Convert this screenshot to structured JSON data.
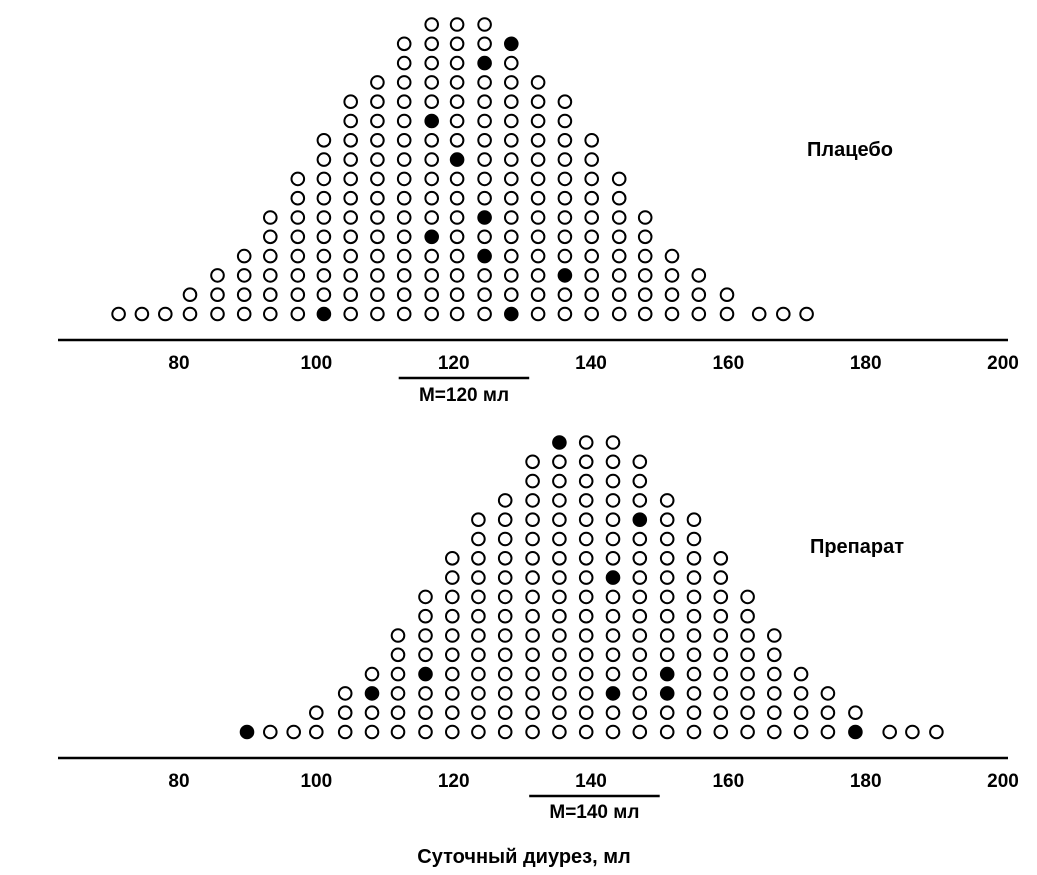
{
  "chart_data": [
    {
      "type": "scatter",
      "title": "Плацебо",
      "mean_label": "M=120 мл",
      "mean_range": [
        112,
        131
      ],
      "xlim": [
        63,
        200
      ],
      "xticks": [
        80,
        100,
        120,
        140,
        160,
        180,
        200
      ],
      "xtick_labels": [
        "80",
        "100",
        "120",
        "140",
        "160",
        "180",
        "200"
      ],
      "columns": [
        {
          "x": 71.2,
          "count": 1
        },
        {
          "x": 74.6,
          "count": 1
        },
        {
          "x": 78.0,
          "count": 1
        },
        {
          "x": 81.6,
          "count": 2
        },
        {
          "x": 85.6,
          "count": 3
        },
        {
          "x": 89.5,
          "count": 4
        },
        {
          "x": 93.3,
          "count": 6
        },
        {
          "x": 97.3,
          "count": 8
        },
        {
          "x": 101.1,
          "count": 10
        },
        {
          "x": 105.0,
          "count": 12
        },
        {
          "x": 108.9,
          "count": 13
        },
        {
          "x": 112.8,
          "count": 15
        },
        {
          "x": 116.8,
          "count": 16
        },
        {
          "x": 120.5,
          "count": 16
        },
        {
          "x": 124.5,
          "count": 16
        },
        {
          "x": 128.4,
          "count": 15
        },
        {
          "x": 132.3,
          "count": 13
        },
        {
          "x": 136.2,
          "count": 12
        },
        {
          "x": 140.1,
          "count": 10
        },
        {
          "x": 144.1,
          "count": 8
        },
        {
          "x": 147.9,
          "count": 6
        },
        {
          "x": 151.8,
          "count": 4
        },
        {
          "x": 155.7,
          "count": 3
        },
        {
          "x": 159.8,
          "count": 2
        },
        {
          "x": 164.5,
          "count": 1
        },
        {
          "x": 168.0,
          "count": 1
        },
        {
          "x": 171.4,
          "count": 1
        }
      ],
      "filled_points": [
        {
          "x": 101.1,
          "level": 1
        },
        {
          "x": 116.8,
          "level": 5
        },
        {
          "x": 116.8,
          "level": 11
        },
        {
          "x": 120.5,
          "level": 9
        },
        {
          "x": 124.5,
          "level": 4
        },
        {
          "x": 124.5,
          "level": 6
        },
        {
          "x": 124.5,
          "level": 14
        },
        {
          "x": 128.4,
          "level": 1
        },
        {
          "x": 128.4,
          "level": 15
        },
        {
          "x": 136.2,
          "level": 3
        }
      ]
    },
    {
      "type": "scatter",
      "title": "Препарат",
      "mean_label": "M=140 мл",
      "mean_range": [
        131,
        150
      ],
      "xlim": [
        63,
        200
      ],
      "xticks": [
        80,
        100,
        120,
        140,
        160,
        180,
        200
      ],
      "xtick_labels": [
        "80",
        "100",
        "120",
        "140",
        "160",
        "180",
        "200"
      ],
      "xlabel": "Суточный диурез, мл",
      "columns": [
        {
          "x": 89.9,
          "count": 1
        },
        {
          "x": 93.3,
          "count": 1
        },
        {
          "x": 96.7,
          "count": 1
        },
        {
          "x": 100.0,
          "count": 2
        },
        {
          "x": 104.2,
          "count": 3
        },
        {
          "x": 108.1,
          "count": 4
        },
        {
          "x": 111.9,
          "count": 6
        },
        {
          "x": 115.9,
          "count": 8
        },
        {
          "x": 119.8,
          "count": 10
        },
        {
          "x": 123.6,
          "count": 12
        },
        {
          "x": 127.5,
          "count": 13
        },
        {
          "x": 131.5,
          "count": 15
        },
        {
          "x": 135.4,
          "count": 16
        },
        {
          "x": 139.3,
          "count": 16
        },
        {
          "x": 143.2,
          "count": 16
        },
        {
          "x": 147.1,
          "count": 15
        },
        {
          "x": 151.1,
          "count": 13
        },
        {
          "x": 155.0,
          "count": 12
        },
        {
          "x": 158.9,
          "count": 10
        },
        {
          "x": 162.8,
          "count": 8
        },
        {
          "x": 166.7,
          "count": 6
        },
        {
          "x": 170.6,
          "count": 4
        },
        {
          "x": 174.5,
          "count": 3
        },
        {
          "x": 178.5,
          "count": 2
        },
        {
          "x": 183.5,
          "count": 1
        },
        {
          "x": 186.8,
          "count": 1
        },
        {
          "x": 190.3,
          "count": 1
        }
      ],
      "filled_points": [
        {
          "x": 89.9,
          "level": 1
        },
        {
          "x": 108.1,
          "level": 3
        },
        {
          "x": 115.9,
          "level": 4
        },
        {
          "x": 135.4,
          "level": 16
        },
        {
          "x": 143.2,
          "level": 3
        },
        {
          "x": 143.2,
          "level": 9
        },
        {
          "x": 147.1,
          "level": 12
        },
        {
          "x": 151.1,
          "level": 3
        },
        {
          "x": 151.1,
          "level": 4
        },
        {
          "x": 178.5,
          "level": 1
        }
      ]
    }
  ]
}
